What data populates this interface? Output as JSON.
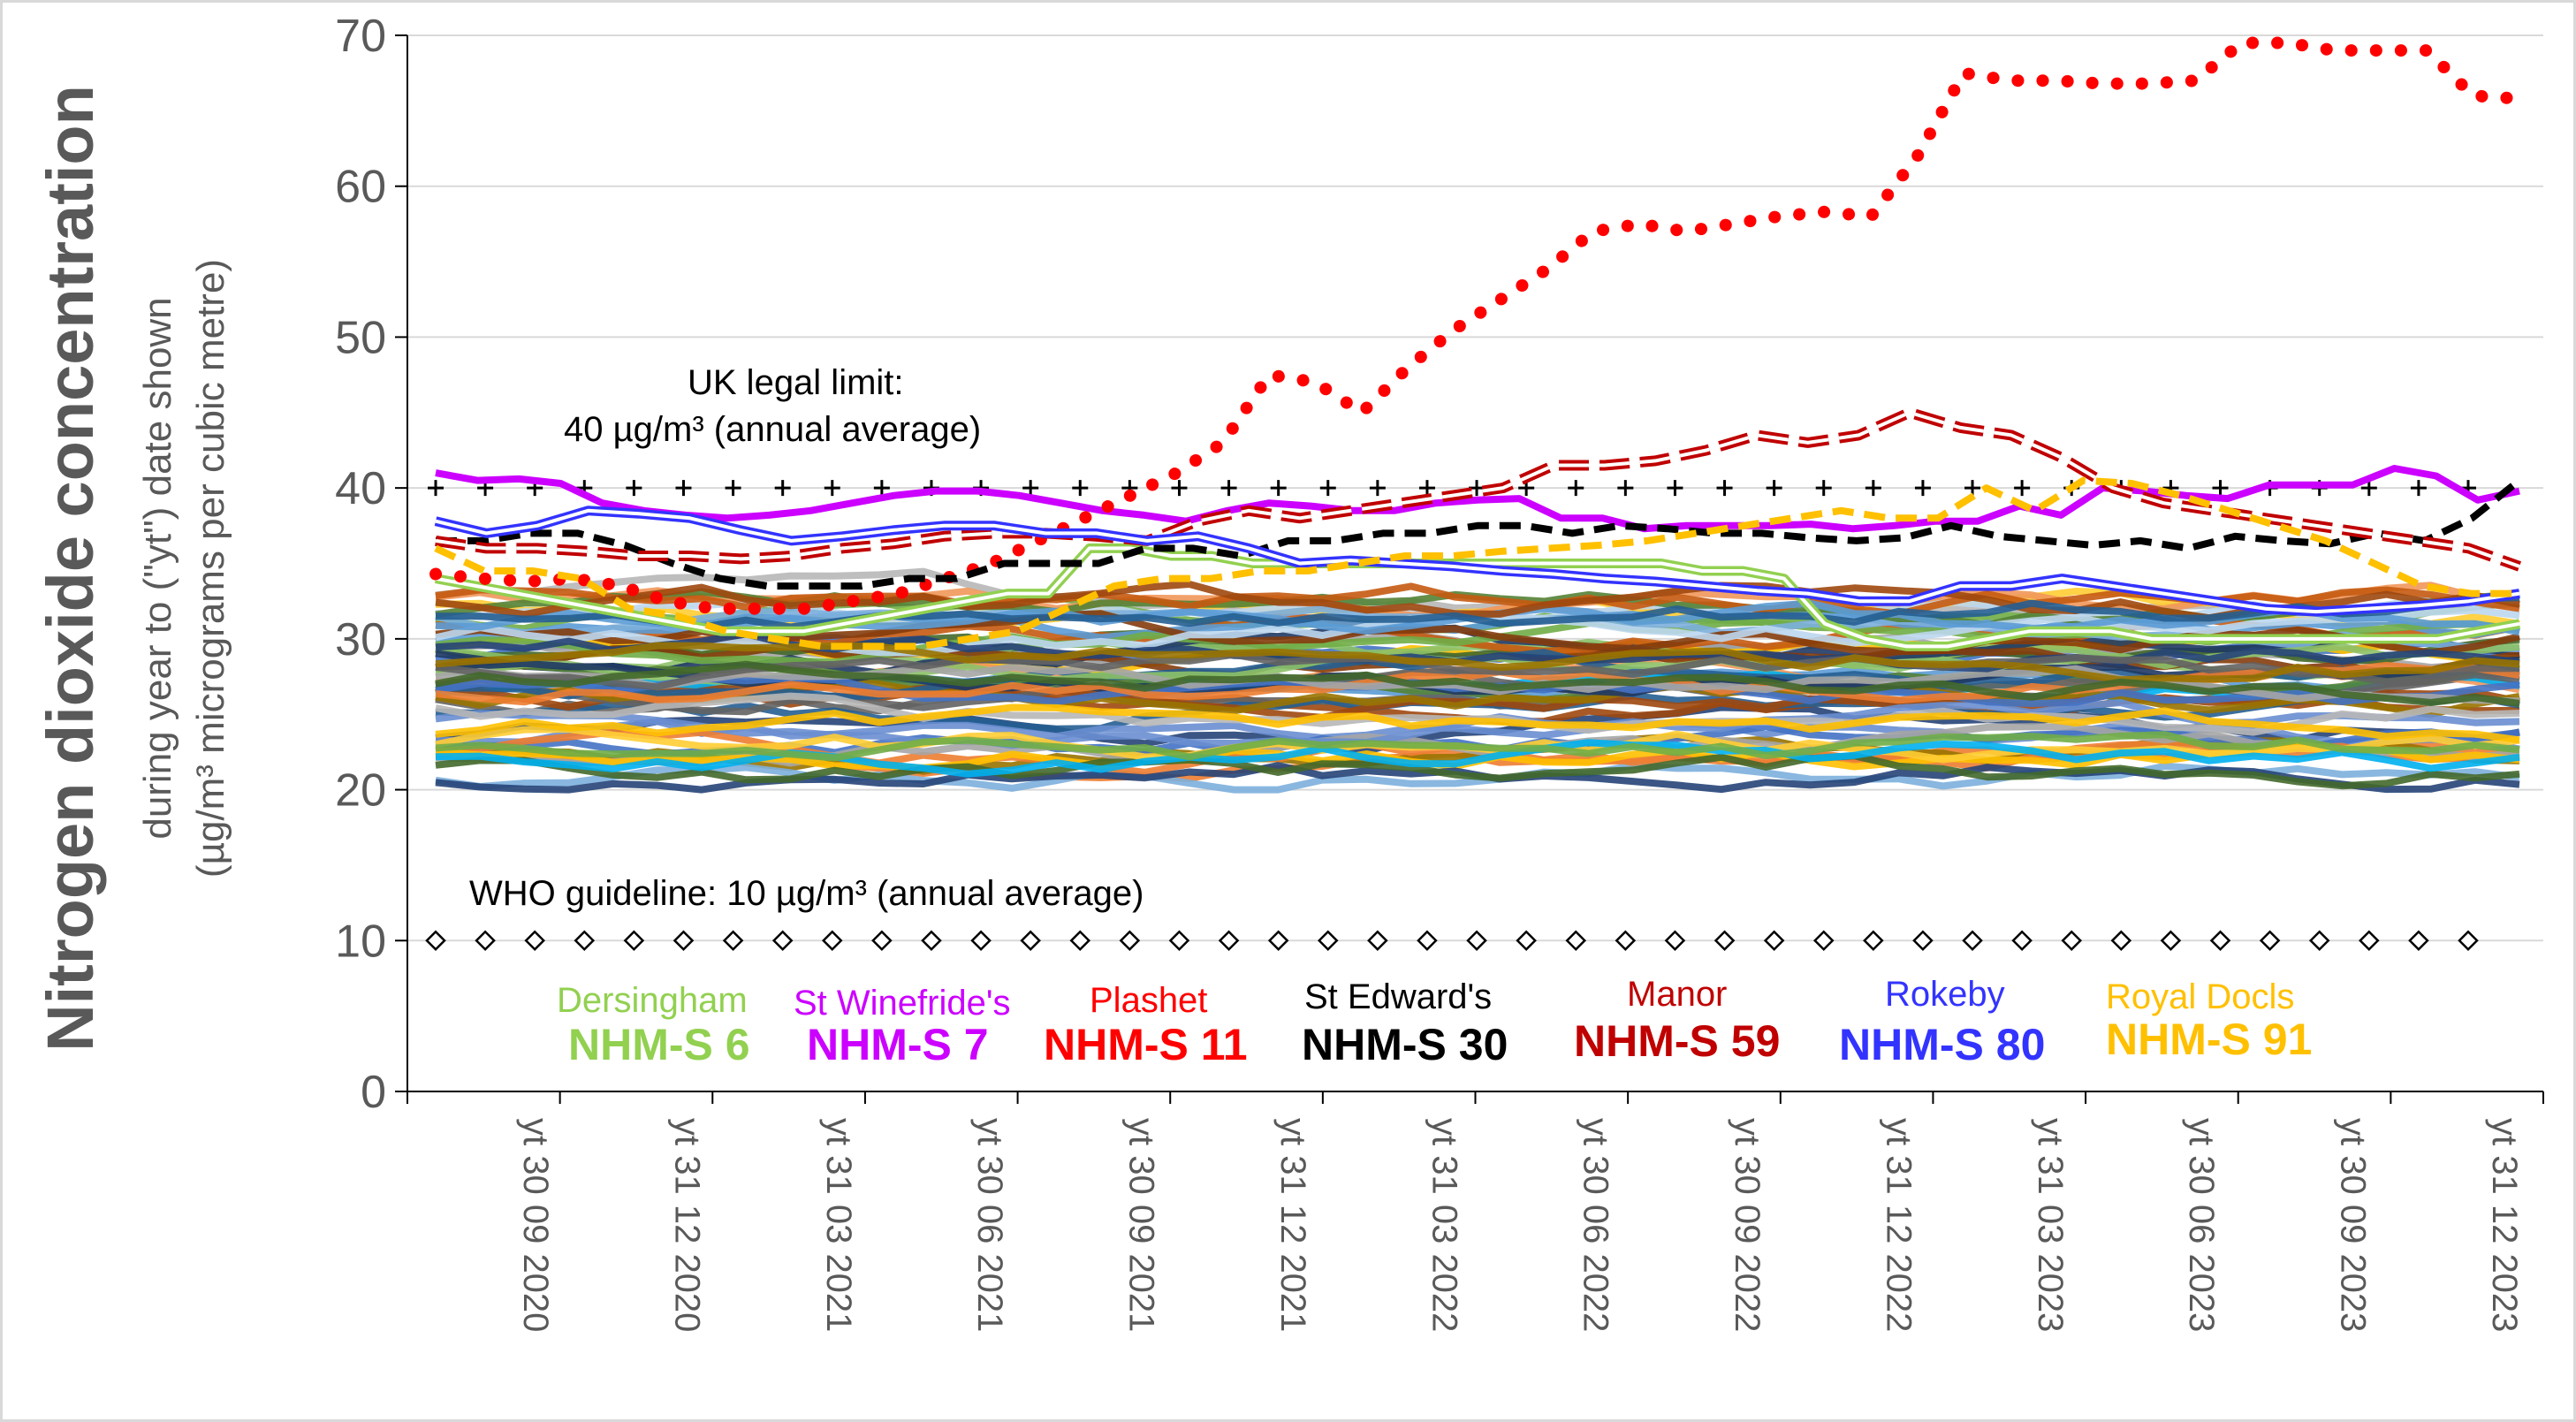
{
  "chart_data": {
    "type": "line",
    "ylabel_main": "Nitrogen dioxide concentration",
    "ylabel_sub1": "during year to (\"yt\") date shown",
    "ylabel_sub2": "(µg/m³ micrograms per cubic metre)",
    "ylim": [
      0,
      70
    ],
    "yticks": [
      0,
      10,
      20,
      30,
      40,
      50,
      60,
      70
    ],
    "grid": true,
    "x_tick_labels": [
      "yt 30 09 2020",
      "yt 31 12 2020",
      "yt 31 03 2021",
      "yt 30 06 2021",
      "yt 30 09 2021",
      "yt 31 12 2021",
      "yt 31 03 2022",
      "yt 30 06 2022",
      "yt 30 09 2022",
      "yt 31 12 2022",
      "yt 31 03 2023",
      "yt 30 06 2023",
      "yt 30 09 2023",
      "yt 31 12 2023"
    ],
    "reference_lines": [
      {
        "label_line1": "UK legal limit:",
        "label_line2": "40 µg/m³  (annual average)",
        "value": 40,
        "marker": "+",
        "color": "#000000"
      },
      {
        "label": "WHO guideline:  10 µg/m³  (annual average)",
        "value": 10,
        "marker": "diamond",
        "color": "#000000"
      }
    ],
    "highlighted_series": [
      {
        "site": "Dersingham",
        "name": "NHM-S 6",
        "color": "#92d050",
        "style": "double",
        "values": [
          34.0,
          33.5,
          33.0,
          32.5,
          32.0,
          31.5,
          31.0,
          30.5,
          30.5,
          30.5,
          31.0,
          31.5,
          32.0,
          32.5,
          33.0,
          33.0,
          36.0,
          36.0,
          35.5,
          35.5,
          35.0,
          35.0,
          35.0,
          35.0,
          35.0,
          35.0,
          35.0,
          35.0,
          35.0,
          35.0,
          35.0,
          34.5,
          34.5,
          34.0,
          31.0,
          30.0,
          29.5,
          29.5,
          30.0,
          30.5,
          30.5,
          30.5,
          30.0,
          30.0,
          30.0,
          30.0,
          30.0,
          30.0,
          30.0,
          30.0,
          30.5,
          31.0
        ]
      },
      {
        "site": "St Winefride's",
        "name": "NHM-S 7",
        "color": "#cc00ff",
        "style": "solid",
        "values": [
          41.0,
          40.5,
          40.6,
          40.3,
          39.0,
          38.5,
          38.2,
          38.0,
          38.2,
          38.5,
          39.0,
          39.5,
          39.8,
          39.8,
          39.5,
          39.0,
          38.5,
          38.2,
          37.8,
          38.5,
          39.0,
          38.8,
          38.5,
          38.5,
          39.0,
          39.2,
          39.3,
          38.0,
          38.0,
          37.3,
          37.5,
          37.5,
          37.5,
          37.6,
          37.3,
          37.5,
          37.8,
          37.8,
          38.8,
          38.2,
          40.0,
          39.8,
          39.5,
          39.3,
          40.2,
          40.2,
          40.2,
          41.3,
          40.8,
          39.2,
          39.8
        ]
      },
      {
        "site": "Plashet",
        "name": "NHM-S 11",
        "color": "#ff0000",
        "style": "dotted",
        "values": [
          34.3,
          34.0,
          33.8,
          34.0,
          33.5,
          32.5,
          32.0,
          32.0,
          32.0,
          32.5,
          33.0,
          34.0,
          35.0,
          36.5,
          38.0,
          39.5,
          41.0,
          43.0,
          47.5,
          47.0,
          45.0,
          48.0,
          50.5,
          52.5,
          54.5,
          57.0,
          57.5,
          57.0,
          57.5,
          58.0,
          58.3,
          58.0,
          62.0,
          67.5,
          67.0,
          67.0,
          66.8,
          66.8,
          67.0,
          69.5,
          69.5,
          69.0,
          69.0,
          69.0,
          66.0,
          65.8
        ]
      },
      {
        "site": "St Edward's",
        "name": "NHM-S 30",
        "color": "#000000",
        "style": "dashed",
        "values": [
          36.5,
          36.5,
          37.0,
          37.0,
          36.2,
          35.0,
          34.0,
          33.5,
          33.5,
          33.5,
          34.0,
          34.0,
          35.0,
          35.0,
          35.0,
          36.0,
          36.0,
          35.5,
          36.5,
          36.5,
          37.0,
          37.0,
          37.5,
          37.5,
          37.0,
          37.5,
          37.3,
          37.0,
          37.0,
          36.7,
          36.5,
          36.7,
          37.5,
          36.8,
          36.5,
          36.2,
          36.5,
          36.0,
          36.8,
          36.5,
          36.3,
          37.0,
          36.5,
          38.0,
          40.5
        ]
      },
      {
        "site": "Manor",
        "name": "NHM-S 59",
        "color": "#c00000",
        "style": "hollow-dash",
        "values": [
          36.5,
          36.0,
          36.0,
          35.8,
          35.5,
          35.5,
          35.3,
          35.5,
          36.0,
          36.3,
          36.8,
          37.0,
          37.0,
          36.8,
          36.5,
          37.8,
          38.5,
          38.0,
          38.5,
          39.0,
          39.5,
          40.0,
          41.5,
          41.5,
          41.8,
          42.5,
          43.5,
          43.0,
          43.5,
          45.0,
          44.0,
          43.5,
          42.0,
          40.0,
          39.0,
          38.5,
          38.0,
          37.5,
          37.0,
          36.5,
          36.0,
          34.8
        ]
      },
      {
        "site": "Rokeby",
        "name": "NHM-S 80",
        "color": "#3333ff",
        "style": "double",
        "values": [
          37.8,
          37.0,
          37.5,
          38.5,
          38.3,
          38.0,
          37.2,
          36.5,
          36.8,
          37.2,
          37.5,
          37.5,
          37.0,
          37.0,
          36.5,
          36.8,
          36.0,
          35.0,
          35.2,
          35.0,
          34.8,
          34.5,
          34.3,
          34.0,
          33.8,
          33.5,
          33.2,
          33.0,
          32.5,
          32.5,
          33.5,
          33.5,
          34.0,
          33.5,
          33.0,
          32.5,
          32.0,
          31.8,
          32.0,
          32.2,
          32.5,
          33.0
        ]
      },
      {
        "site": "Royal Docls",
        "name": "NHM-S 91",
        "color": "#ffc000",
        "style": "dashed",
        "values": [
          36.0,
          34.5,
          34.5,
          34.0,
          32.0,
          31.5,
          30.5,
          30.0,
          29.5,
          29.5,
          29.5,
          30.0,
          30.5,
          32.0,
          33.5,
          34.0,
          34.0,
          34.5,
          34.5,
          35.0,
          35.5,
          35.5,
          35.8,
          36.0,
          36.2,
          36.5,
          37.0,
          37.5,
          38.0,
          38.5,
          38.0,
          38.0,
          40.0,
          38.5,
          40.5,
          40.3,
          39.5,
          38.5,
          37.5,
          36.5,
          35.0,
          33.5,
          33.0,
          33.0
        ]
      }
    ],
    "other_series_count": 60,
    "other_series_range": [
      20,
      35
    ]
  }
}
